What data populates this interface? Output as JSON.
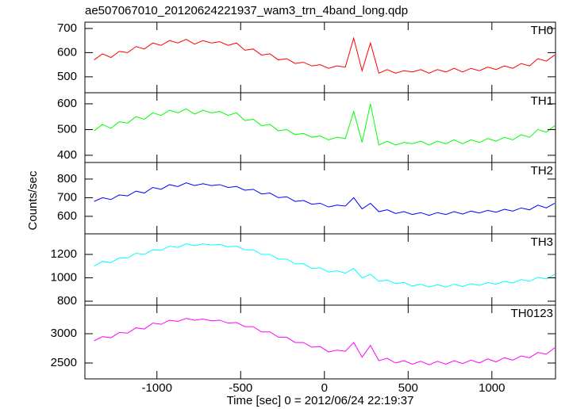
{
  "chart_data": [
    {
      "type": "line",
      "title": "ae507067010_20120624221937_wam3_trn_4band_long.qdp",
      "x": [
        -1375,
        -1325,
        -1275,
        -1225,
        -1175,
        -1125,
        -1075,
        -1025,
        -975,
        -925,
        -875,
        -825,
        -775,
        -725,
        -675,
        -625,
        -575,
        -525,
        -475,
        -425,
        -375,
        -325,
        -275,
        -225,
        -175,
        -125,
        -75,
        -25,
        25,
        75,
        125,
        175,
        225,
        275,
        325,
        375,
        425,
        475,
        525,
        575,
        625,
        675,
        725,
        775,
        825,
        875,
        925,
        975,
        1025,
        1075,
        1125,
        1175,
        1225,
        1275,
        1325,
        1375
      ],
      "xlim": [
        -1430,
        1380
      ],
      "ylim": [
        434,
        726
      ],
      "yticks": [
        500,
        600,
        700
      ],
      "series": [
        {
          "name": "TH0",
          "color": "#ff0000",
          "values": [
            570,
            595,
            580,
            605,
            600,
            625,
            615,
            640,
            630,
            650,
            640,
            655,
            635,
            650,
            640,
            645,
            630,
            640,
            610,
            615,
            590,
            595,
            570,
            575,
            555,
            560,
            545,
            550,
            535,
            545,
            540,
            660,
            525,
            640,
            515,
            530,
            515,
            525,
            520,
            530,
            515,
            530,
            520,
            535,
            520,
            535,
            525,
            540,
            530,
            545,
            535,
            555,
            545,
            575,
            565,
            590
          ]
        }
      ]
    },
    {
      "type": "line",
      "x": [
        -1375,
        -1325,
        -1275,
        -1225,
        -1175,
        -1125,
        -1075,
        -1025,
        -975,
        -925,
        -875,
        -825,
        -775,
        -725,
        -675,
        -625,
        -575,
        -525,
        -475,
        -425,
        -375,
        -325,
        -275,
        -225,
        -175,
        -125,
        -75,
        -25,
        25,
        75,
        125,
        175,
        225,
        275,
        325,
        375,
        425,
        475,
        525,
        575,
        625,
        675,
        725,
        775,
        825,
        875,
        925,
        975,
        1025,
        1075,
        1125,
        1175,
        1225,
        1275,
        1325,
        1375
      ],
      "xlim": [
        -1430,
        1380
      ],
      "ylim": [
        372,
        643
      ],
      "yticks": [
        400,
        500,
        600
      ],
      "series": [
        {
          "name": "TH1",
          "color": "#00ff00",
          "values": [
            495,
            520,
            505,
            530,
            525,
            550,
            540,
            565,
            555,
            575,
            565,
            580,
            560,
            575,
            565,
            570,
            555,
            565,
            535,
            540,
            515,
            520,
            495,
            500,
            480,
            485,
            470,
            475,
            460,
            470,
            465,
            570,
            450,
            600,
            440,
            455,
            440,
            450,
            445,
            455,
            440,
            455,
            445,
            460,
            445,
            460,
            450,
            465,
            455,
            470,
            460,
            480,
            470,
            500,
            490,
            515
          ]
        }
      ]
    },
    {
      "type": "line",
      "ylabel": "Counts/sec",
      "x": [
        -1375,
        -1325,
        -1275,
        -1225,
        -1175,
        -1125,
        -1075,
        -1025,
        -975,
        -925,
        -875,
        -825,
        -775,
        -725,
        -675,
        -625,
        -575,
        -525,
        -475,
        -425,
        -375,
        -325,
        -275,
        -225,
        -175,
        -125,
        -75,
        -25,
        25,
        75,
        125,
        175,
        225,
        275,
        325,
        375,
        425,
        475,
        525,
        575,
        625,
        675,
        725,
        775,
        825,
        875,
        925,
        975,
        1025,
        1075,
        1125,
        1175,
        1225,
        1275,
        1325,
        1375
      ],
      "xlim": [
        -1430,
        1380
      ],
      "ylim": [
        506,
        889
      ],
      "yticks": [
        600,
        700,
        800
      ],
      "series": [
        {
          "name": "TH2",
          "color": "#0000ff",
          "values": [
            680,
            700,
            690,
            715,
            710,
            735,
            725,
            755,
            745,
            770,
            760,
            780,
            765,
            775,
            765,
            770,
            755,
            760,
            740,
            745,
            720,
            725,
            700,
            705,
            680,
            685,
            665,
            670,
            650,
            660,
            655,
            700,
            640,
            670,
            625,
            635,
            615,
            625,
            610,
            620,
            605,
            620,
            610,
            625,
            612,
            628,
            618,
            632,
            622,
            638,
            628,
            645,
            635,
            660,
            645,
            670
          ]
        }
      ]
    },
    {
      "type": "line",
      "x": [
        -1375,
        -1325,
        -1275,
        -1225,
        -1175,
        -1125,
        -1075,
        -1025,
        -975,
        -925,
        -875,
        -825,
        -775,
        -725,
        -675,
        -625,
        -575,
        -525,
        -475,
        -425,
        -375,
        -325,
        -275,
        -225,
        -175,
        -125,
        -75,
        -25,
        25,
        75,
        125,
        175,
        225,
        275,
        325,
        375,
        425,
        475,
        525,
        575,
        625,
        675,
        725,
        775,
        825,
        875,
        925,
        975,
        1025,
        1075,
        1125,
        1175,
        1225,
        1275,
        1325,
        1375
      ],
      "xlim": [
        -1430,
        1380
      ],
      "ylim": [
        766,
        1376
      ],
      "yticks": [
        800,
        1000,
        1200
      ],
      "series": [
        {
          "name": "TH3",
          "color": "#00ffff",
          "values": [
            1100,
            1140,
            1130,
            1170,
            1170,
            1210,
            1200,
            1240,
            1235,
            1270,
            1260,
            1290,
            1275,
            1290,
            1280,
            1285,
            1265,
            1270,
            1240,
            1240,
            1200,
            1200,
            1160,
            1160,
            1120,
            1120,
            1080,
            1085,
            1050,
            1060,
            1040,
            1080,
            1000,
            1030,
            970,
            980,
            950,
            960,
            930,
            945,
            920,
            940,
            920,
            945,
            925,
            950,
            935,
            960,
            945,
            970,
            955,
            985,
            970,
            1005,
            990,
            1030
          ]
        }
      ]
    },
    {
      "type": "line",
      "xlabel": "Time [sec] 0 = 2012/06/24 22:19:37",
      "x": [
        -1375,
        -1325,
        -1275,
        -1225,
        -1175,
        -1125,
        -1075,
        -1025,
        -975,
        -925,
        -875,
        -825,
        -775,
        -725,
        -675,
        -625,
        -575,
        -525,
        -475,
        -425,
        -375,
        -325,
        -275,
        -225,
        -175,
        -125,
        -75,
        -25,
        25,
        75,
        125,
        175,
        225,
        275,
        325,
        375,
        425,
        475,
        525,
        575,
        625,
        675,
        725,
        775,
        825,
        875,
        925,
        975,
        1025,
        1075,
        1125,
        1175,
        1225,
        1275,
        1325,
        1375
      ],
      "xlim": [
        -1430,
        1380
      ],
      "xticks": [
        -1000,
        -500,
        0,
        500,
        1000
      ],
      "ylim": [
        2230,
        3486
      ],
      "yticks": [
        2500,
        3000
      ],
      "series": [
        {
          "name": "TH0123",
          "color": "#ff00ff",
          "values": [
            2880,
            2950,
            2930,
            3020,
            3010,
            3100,
            3080,
            3180,
            3160,
            3230,
            3210,
            3260,
            3230,
            3250,
            3220,
            3230,
            3180,
            3190,
            3120,
            3120,
            3030,
            3030,
            2940,
            2940,
            2850,
            2850,
            2770,
            2780,
            2690,
            2720,
            2700,
            2850,
            2600,
            2800,
            2540,
            2580,
            2500,
            2540,
            2480,
            2530,
            2470,
            2530,
            2480,
            2540,
            2490,
            2550,
            2500,
            2570,
            2520,
            2590,
            2550,
            2620,
            2590,
            2680,
            2650,
            2760
          ]
        }
      ]
    }
  ]
}
